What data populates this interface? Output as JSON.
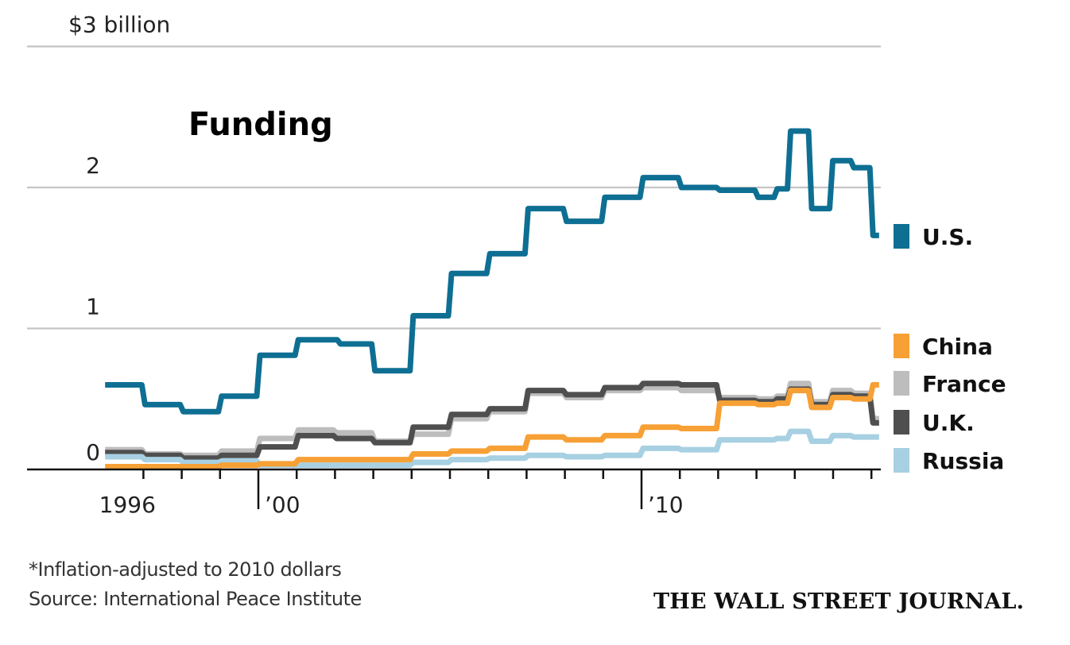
{
  "chart_data": {
    "type": "line",
    "title": "Funding",
    "ylabel": "$3 billion",
    "xlabel": "",
    "ylim": [
      0,
      3
    ],
    "xlim": [
      1996,
      2016.2
    ],
    "grid": true,
    "legend_position": "right",
    "y_ticks": [
      {
        "value": 0,
        "label": "0"
      },
      {
        "value": 1,
        "label": "1"
      },
      {
        "value": 2,
        "label": "2"
      },
      {
        "value": 3,
        "label": "$3 billion"
      }
    ],
    "x_tick_years": [
      1997,
      1998,
      1999,
      2000,
      2001,
      2002,
      2003,
      2004,
      2005,
      2006,
      2007,
      2008,
      2009,
      2010,
      2011,
      2012,
      2013,
      2014,
      2015,
      2016
    ],
    "x_major_ticks": [
      2000,
      2010
    ],
    "x_labels": [
      {
        "year": 1996.5,
        "label": "1996",
        "anchor": "middle"
      },
      {
        "year": 2000,
        "label": "’00",
        "anchor": "start"
      },
      {
        "year": 2010,
        "label": "’10",
        "anchor": "start"
      }
    ],
    "series": [
      {
        "name": "U.S.",
        "color": "#0e6f93",
        "steps": [
          [
            1996,
            0.6
          ],
          [
            1997,
            0.46
          ],
          [
            1998,
            0.41
          ],
          [
            1999,
            0.52
          ],
          [
            2000,
            0.81
          ],
          [
            2001,
            0.92
          ],
          [
            2002.1,
            0.89
          ],
          [
            2003,
            0.7
          ],
          [
            2004,
            1.09
          ],
          [
            2005,
            1.39
          ],
          [
            2006,
            1.53
          ],
          [
            2007,
            1.85
          ],
          [
            2008,
            1.76
          ],
          [
            2009,
            1.93
          ],
          [
            2010,
            2.07
          ],
          [
            2011,
            2.0
          ],
          [
            2012,
            1.98
          ],
          [
            2013,
            1.93
          ],
          [
            2013.5,
            1.99
          ],
          [
            2013.85,
            2.4
          ],
          [
            2014.4,
            1.85
          ],
          [
            2014.95,
            2.19
          ],
          [
            2015.5,
            2.14
          ],
          [
            2016,
            1.66
          ]
        ]
      },
      {
        "name": "France",
        "color": "#bdbdbd",
        "steps": [
          [
            1996,
            0.14
          ],
          [
            1997,
            0.11
          ],
          [
            1998,
            0.1
          ],
          [
            1999,
            0.13
          ],
          [
            2000,
            0.22
          ],
          [
            2001,
            0.28
          ],
          [
            2002,
            0.26
          ],
          [
            2003,
            0.2
          ],
          [
            2004,
            0.25
          ],
          [
            2005,
            0.36
          ],
          [
            2006,
            0.41
          ],
          [
            2007,
            0.54
          ],
          [
            2008,
            0.51
          ],
          [
            2009,
            0.56
          ],
          [
            2010,
            0.58
          ],
          [
            2011,
            0.56
          ],
          [
            2012,
            0.51
          ],
          [
            2013,
            0.5
          ],
          [
            2013.5,
            0.52
          ],
          [
            2013.85,
            0.61
          ],
          [
            2014.4,
            0.48
          ],
          [
            2014.95,
            0.56
          ],
          [
            2015.5,
            0.54
          ],
          [
            2016,
            0.36
          ]
        ]
      },
      {
        "name": "U.K.",
        "color": "#4f4f4f",
        "steps": [
          [
            1996,
            0.12
          ],
          [
            1997,
            0.1
          ],
          [
            1998,
            0.08
          ],
          [
            1999,
            0.1
          ],
          [
            2000,
            0.16
          ],
          [
            2001,
            0.24
          ],
          [
            2002,
            0.22
          ],
          [
            2003,
            0.19
          ],
          [
            2004,
            0.3
          ],
          [
            2005,
            0.39
          ],
          [
            2006,
            0.43
          ],
          [
            2007,
            0.56
          ],
          [
            2008,
            0.53
          ],
          [
            2009,
            0.58
          ],
          [
            2010,
            0.61
          ],
          [
            2011,
            0.6
          ],
          [
            2012,
            0.49
          ],
          [
            2013,
            0.48
          ],
          [
            2013.5,
            0.5
          ],
          [
            2013.85,
            0.57
          ],
          [
            2014.4,
            0.46
          ],
          [
            2014.95,
            0.53
          ],
          [
            2015.5,
            0.52
          ],
          [
            2016,
            0.33
          ]
        ]
      },
      {
        "name": "Russia",
        "color": "#a7d0e2",
        "steps": [
          [
            1996,
            0.09
          ],
          [
            1997,
            0.07
          ],
          [
            1998,
            0.05
          ],
          [
            1999,
            0.06
          ],
          [
            2000,
            0.03
          ],
          [
            2001,
            0.03
          ],
          [
            2002,
            0.03
          ],
          [
            2003,
            0.03
          ],
          [
            2004,
            0.05
          ],
          [
            2005,
            0.07
          ],
          [
            2006,
            0.08
          ],
          [
            2007,
            0.1
          ],
          [
            2008,
            0.09
          ],
          [
            2009,
            0.1
          ],
          [
            2010,
            0.15
          ],
          [
            2011,
            0.14
          ],
          [
            2012,
            0.21
          ],
          [
            2013,
            0.21
          ],
          [
            2013.5,
            0.22
          ],
          [
            2013.85,
            0.27
          ],
          [
            2014.4,
            0.2
          ],
          [
            2014.95,
            0.24
          ],
          [
            2015.5,
            0.23
          ],
          [
            2016,
            0.23
          ]
        ]
      },
      {
        "name": "China",
        "color": "#f7a035",
        "steps": [
          [
            1996,
            0.02
          ],
          [
            1997,
            0.02
          ],
          [
            1998,
            0.02
          ],
          [
            1999,
            0.03
          ],
          [
            2000,
            0.04
          ],
          [
            2001,
            0.07
          ],
          [
            2002,
            0.07
          ],
          [
            2003,
            0.07
          ],
          [
            2004,
            0.11
          ],
          [
            2005,
            0.13
          ],
          [
            2006,
            0.15
          ],
          [
            2007,
            0.23
          ],
          [
            2008,
            0.21
          ],
          [
            2009,
            0.24
          ],
          [
            2010,
            0.3
          ],
          [
            2011,
            0.29
          ],
          [
            2012,
            0.47
          ],
          [
            2013,
            0.46
          ],
          [
            2013.5,
            0.47
          ],
          [
            2013.85,
            0.56
          ],
          [
            2014.4,
            0.44
          ],
          [
            2014.95,
            0.51
          ],
          [
            2015.5,
            0.5
          ],
          [
            2016,
            0.6
          ]
        ]
      }
    ],
    "legend": [
      {
        "name": "U.S.",
        "color": "#0e6f93"
      },
      {
        "name": "China",
        "color": "#f7a035"
      },
      {
        "name": "France",
        "color": "#bdbdbd"
      },
      {
        "name": "U.K.",
        "color": "#4f4f4f"
      },
      {
        "name": "Russia",
        "color": "#a7d0e2"
      }
    ]
  },
  "footer": {
    "note": "*Inflation-adjusted to 2010 dollars",
    "source": "Source: International Peace Institute",
    "brand": "THE WALL STREET JOURNAL."
  }
}
